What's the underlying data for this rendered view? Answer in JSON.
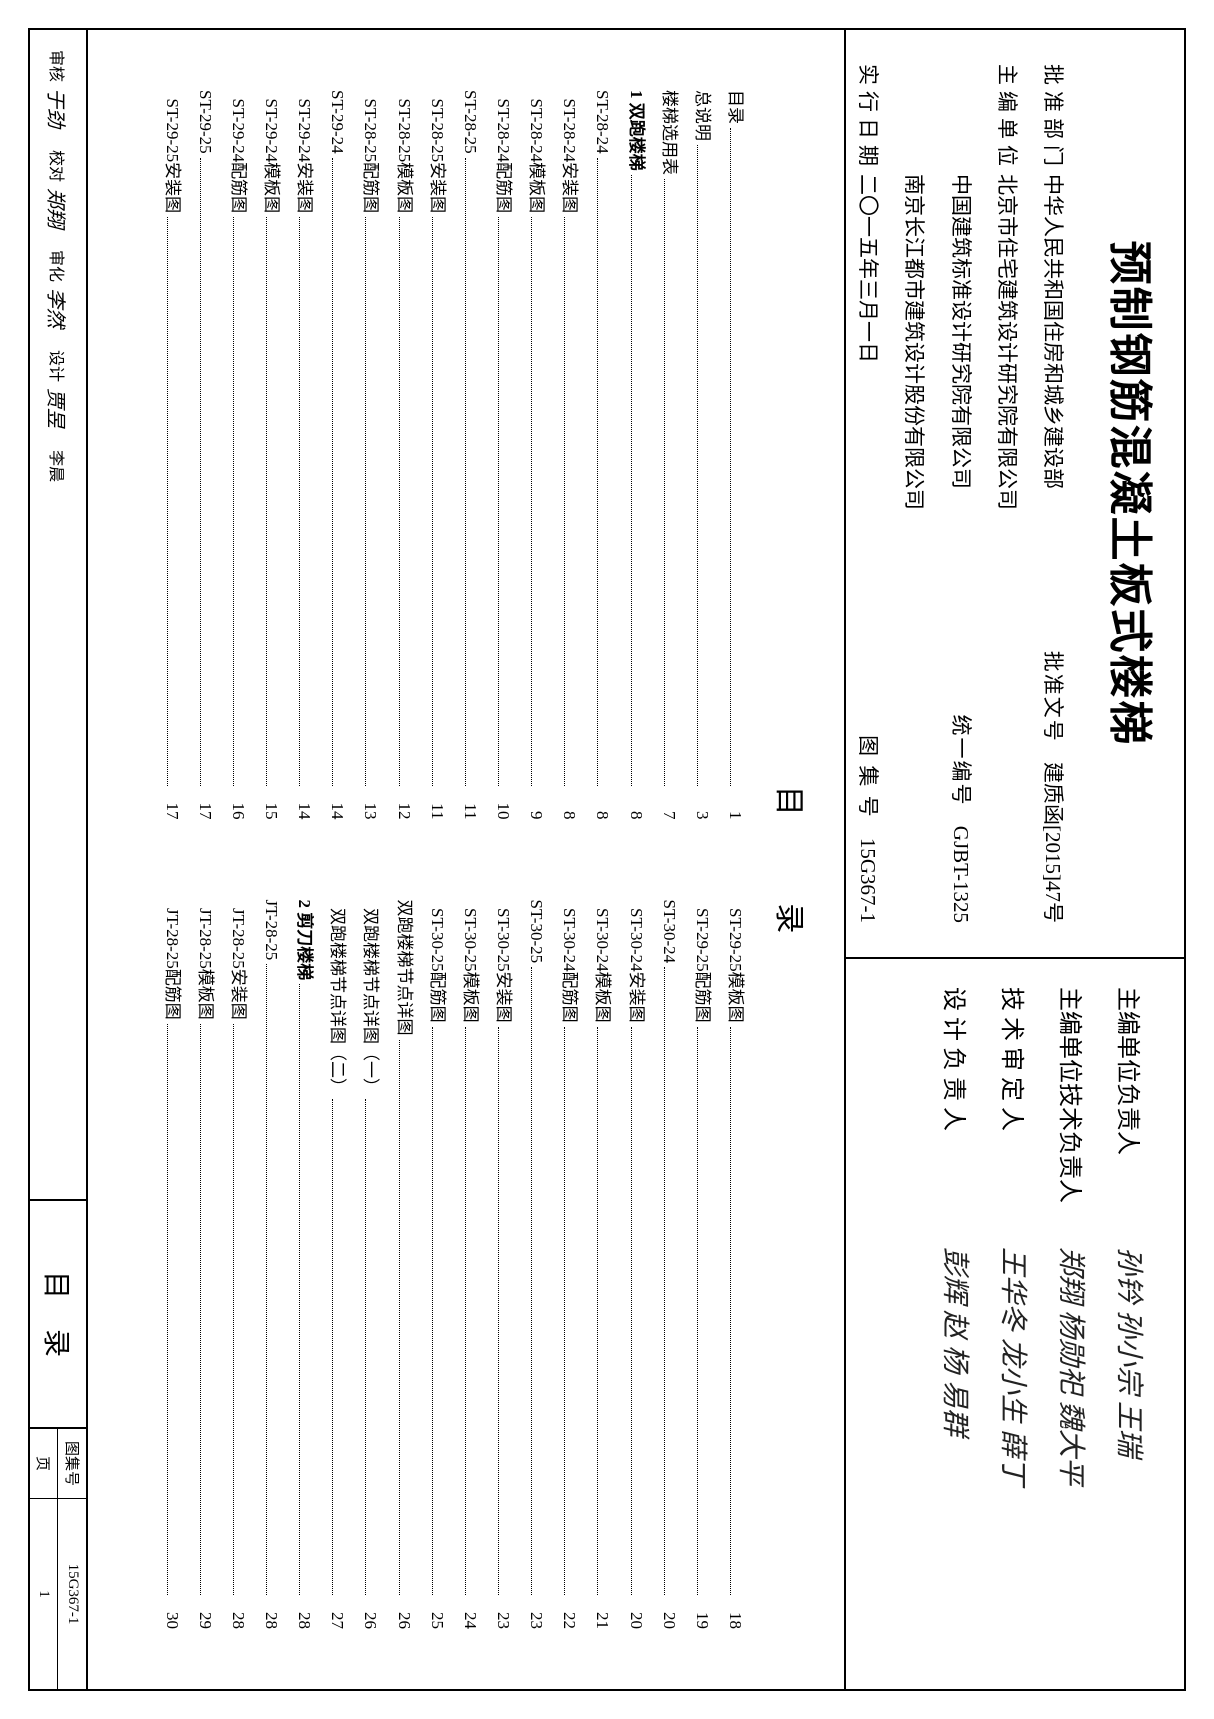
{
  "title": "预制钢筋混凝土板式楼梯",
  "meta": {
    "approve_dept_label": "批准部门",
    "approve_dept": "中华人民共和国住房和城乡建设部",
    "approve_no_label": "批准文号",
    "approve_no": "建质函[2015]47号",
    "editor_label": "主编单位",
    "editor_line1": "北京市住宅建筑设计研究院有限公司",
    "editor_line2": "中国建筑标准设计研究院有限公司",
    "editor_line3": "南京长江都市建筑设计股份有限公司",
    "unicode_label": "统一编号",
    "unicode": "GJBT-1325",
    "date_label": "实行日期",
    "date": "二〇一五年三月一日",
    "atlas_label": "图 集 号",
    "atlas": "15G367-1"
  },
  "signatures": {
    "r1_label": "主编单位负责人",
    "r1_sigs": "孙钤  孙小宗  王瑞",
    "r2_label": "主编单位技术负责人",
    "r2_sigs": "郑翔  杨勋祀  魏大平",
    "r3_label": "技 术 审 定 人",
    "r3_sigs": "王华冬  龙小生  薛丁",
    "r4_label": "设 计 负 责 人",
    "r4_sigs": "彭辉  赵 杨  易群"
  },
  "toc_title": "目 录",
  "toc_col1": [
    {
      "label": "目录",
      "page": "1",
      "bold": false
    },
    {
      "label": "总说明",
      "page": "3",
      "bold": false
    },
    {
      "label": "楼梯选用表",
      "page": "7",
      "bold": false
    },
    {
      "label": "1 双跑楼梯",
      "page": "8",
      "bold": true
    },
    {
      "label": "ST-28-24",
      "page": "8",
      "bold": false
    },
    {
      "label": "  ST-28-24安装图",
      "page": "8",
      "bold": false
    },
    {
      "label": "  ST-28-24模板图",
      "page": "9",
      "bold": false
    },
    {
      "label": "  ST-28-24配筋图",
      "page": "10",
      "bold": false
    },
    {
      "label": "ST-28-25",
      "page": "11",
      "bold": false
    },
    {
      "label": "  ST-28-25安装图",
      "page": "11",
      "bold": false
    },
    {
      "label": "  ST-28-25模板图",
      "page": "12",
      "bold": false
    },
    {
      "label": "  ST-28-25配筋图",
      "page": "13",
      "bold": false
    },
    {
      "label": "ST-29-24",
      "page": "14",
      "bold": false
    },
    {
      "label": "  ST-29-24安装图",
      "page": "14",
      "bold": false
    },
    {
      "label": "  ST-29-24模板图",
      "page": "15",
      "bold": false
    },
    {
      "label": "  ST-29-24配筋图",
      "page": "16",
      "bold": false
    },
    {
      "label": "ST-29-25",
      "page": "17",
      "bold": false
    },
    {
      "label": "  ST-29-25安装图",
      "page": "17",
      "bold": false
    }
  ],
  "toc_col2": [
    {
      "label": "  ST-29-25模板图",
      "page": "18",
      "bold": false
    },
    {
      "label": "  ST-29-25配筋图",
      "page": "19",
      "bold": false
    },
    {
      "label": "ST-30-24",
      "page": "20",
      "bold": false
    },
    {
      "label": "  ST-30-24安装图",
      "page": "20",
      "bold": false
    },
    {
      "label": "  ST-30-24模板图",
      "page": "21",
      "bold": false
    },
    {
      "label": "  ST-30-24配筋图",
      "page": "22",
      "bold": false
    },
    {
      "label": "ST-30-25",
      "page": "23",
      "bold": false
    },
    {
      "label": "  ST-30-25安装图",
      "page": "23",
      "bold": false
    },
    {
      "label": "  ST-30-25模板图",
      "page": "24",
      "bold": false
    },
    {
      "label": "  ST-30-25配筋图",
      "page": "25",
      "bold": false
    },
    {
      "label": "双跑楼梯节点详图",
      "page": "26",
      "bold": false
    },
    {
      "label": "  双跑楼梯节点详图（一）",
      "page": "26",
      "bold": false
    },
    {
      "label": "  双跑楼梯节点详图（二）",
      "page": "27",
      "bold": false
    },
    {
      "label": "2 剪刀楼梯",
      "page": "28",
      "bold": true
    },
    {
      "label": "JT-28-25",
      "page": "28",
      "bold": false
    },
    {
      "label": "  JT-28-25安装图",
      "page": "28",
      "bold": false
    },
    {
      "label": "  JT-28-25模板图",
      "page": "29",
      "bold": false
    },
    {
      "label": "  JT-28-25配筋图",
      "page": "30",
      "bold": false
    }
  ],
  "footer": {
    "pairs": [
      {
        "label": "审核",
        "sig": "于劲"
      },
      {
        "label": "校对",
        "sig": "郑翔"
      },
      {
        "label": "审化",
        "sig": "李然"
      },
      {
        "label": "设计",
        "sig": "贾昱"
      },
      {
        "label": "李晨"
      }
    ],
    "mid": "目录",
    "atlas_label": "图集号",
    "atlas": "15G367-1",
    "page_label": "页",
    "page": "1"
  }
}
